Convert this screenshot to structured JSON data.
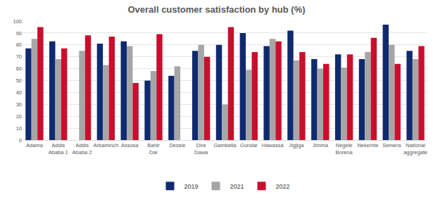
{
  "chart_data": {
    "type": "bar",
    "title": "Overall customer satisfaction by hub (%)",
    "categories": [
      "Adama",
      "Addis Ababa 1",
      "Addis Ababa 2",
      "Arbaminch",
      "Assosa",
      "Bahir Dar",
      "Dessie",
      "Dire Dawa",
      "Gambella",
      "Gondar",
      "Hawassa",
      "Jigjiga",
      "Jimma",
      "Negele Borena",
      "Nekemte",
      "Semera",
      "National aggregate"
    ],
    "series": [
      {
        "name": "2019",
        "color": "#0f2a6e",
        "values": [
          77,
          83,
          null,
          81,
          83,
          50,
          54,
          75,
          80,
          90,
          79,
          92,
          68,
          72,
          68,
          97,
          75
        ]
      },
      {
        "name": "2021",
        "color": "#a6a6a6",
        "values": [
          85,
          68,
          75,
          63,
          79,
          58,
          62,
          80,
          30,
          59,
          85,
          67,
          60,
          61,
          74,
          80,
          68
        ]
      },
      {
        "name": "2022",
        "color": "#c8102e",
        "values": [
          95,
          77,
          88,
          87,
          48,
          89,
          null,
          70,
          95,
          74,
          83,
          74,
          64,
          72,
          86,
          64,
          79
        ]
      }
    ],
    "ylim": [
      0,
      100
    ],
    "yticks": [
      0,
      10,
      20,
      30,
      40,
      50,
      60,
      70,
      80,
      90,
      100
    ],
    "grid": true,
    "legend": "bottom"
  }
}
